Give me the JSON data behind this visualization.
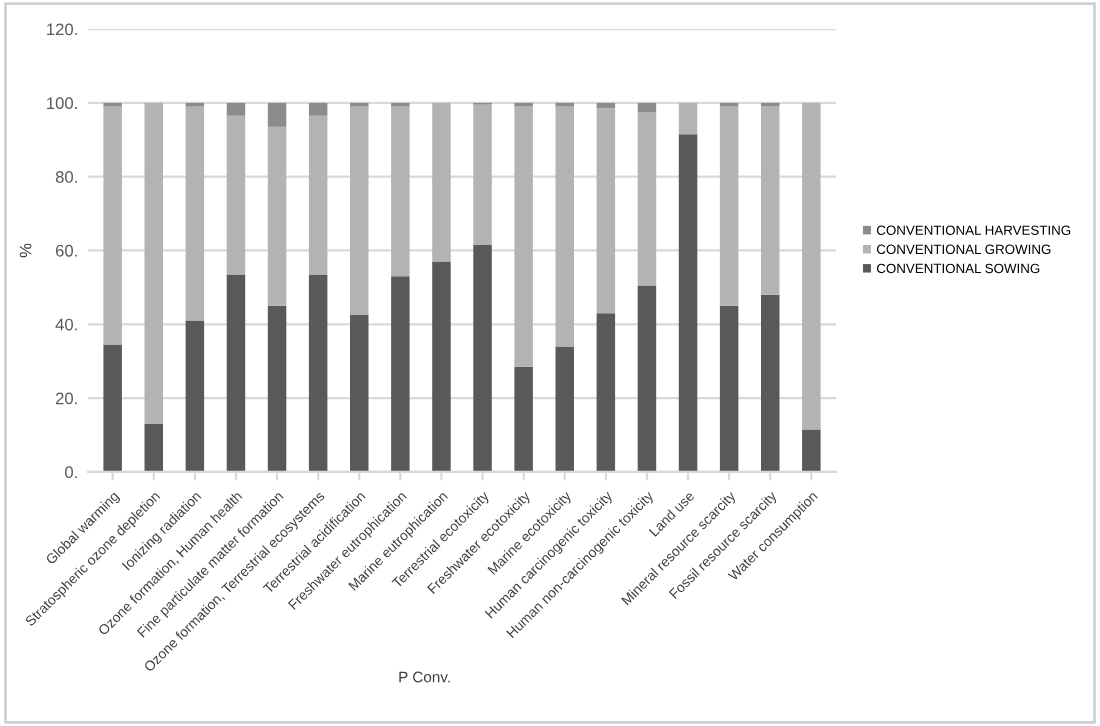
{
  "chart_data": {
    "type": "bar",
    "stacked": true,
    "xlabel": "P Conv.",
    "ylabel": "%",
    "categories": [
      "Global warming",
      "Stratospheric ozone depletion",
      "Ionizing radiation",
      "Ozone formation, Human health",
      "Fine particulate matter formation",
      "Ozone formation, Terrestrial ecosystems",
      "Terrestrial acidification",
      "Freshwater eutrophication",
      "Marine eutrophication",
      "Terrestrial ecotoxicity",
      "Freshwater ecotoxicity",
      "Marine ecotoxicity",
      "Human carcinogenic toxicity",
      "Human non-carcinogenic toxicity",
      "Land use",
      "Mineral resource scarcity",
      "Fossil resource scarcity",
      "Water consumption"
    ],
    "series": [
      {
        "name": "CONVENTIONAL SOWING",
        "color": "#595959",
        "values": [
          34.5,
          13,
          41,
          53.5,
          45,
          53.5,
          42.5,
          53,
          57,
          61.5,
          28.5,
          34,
          43,
          50.5,
          91.5,
          45,
          48,
          11.5
        ]
      },
      {
        "name": "CONVENTIONAL GROWING",
        "color": "#b3b3b3",
        "values": [
          64.5,
          87,
          58,
          43,
          48.5,
          43,
          56.5,
          46,
          43,
          38,
          70.5,
          65,
          55.5,
          47,
          8.5,
          54,
          51,
          88.5
        ]
      },
      {
        "name": "CONVENTIONAL HARVESTING",
        "color": "#8c8c8c",
        "values": [
          1,
          0,
          1,
          3.5,
          6.5,
          3.5,
          1,
          1,
          0,
          0.5,
          1,
          1,
          1.5,
          2.5,
          0,
          1,
          1,
          0
        ]
      }
    ],
    "ylim": [
      0,
      120
    ],
    "yticks": [
      {
        "value": 0,
        "label": "0."
      },
      {
        "value": 20,
        "label": "20."
      },
      {
        "value": 40,
        "label": "40."
      },
      {
        "value": 60,
        "label": "60."
      },
      {
        "value": 80,
        "label": "80."
      },
      {
        "value": 100,
        "label": "100."
      },
      {
        "value": 120,
        "label": "120."
      }
    ],
    "grid": "y",
    "legend": "right"
  }
}
